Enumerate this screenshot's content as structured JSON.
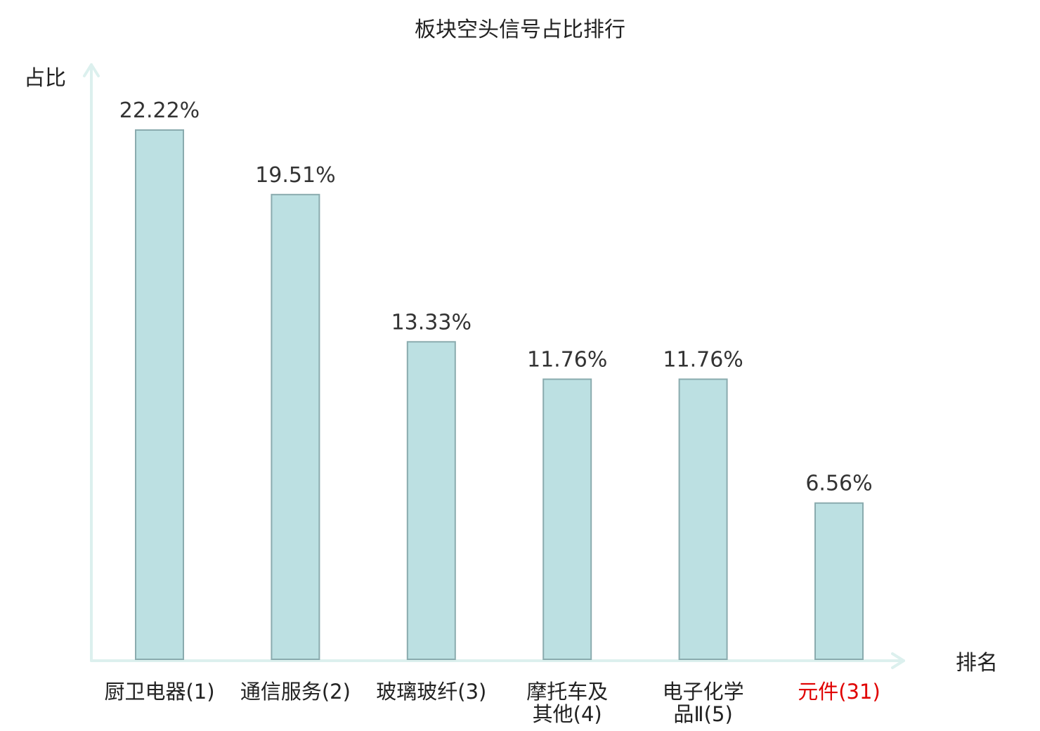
{
  "chart_data": {
    "type": "bar",
    "title": "板块空头信号占比排行",
    "ylabel": "占比",
    "xlabel": "排名",
    "categories": [
      [
        "厨卫电器(1)"
      ],
      [
        "通信服务(2)"
      ],
      [
        "玻璃玻纤(3)"
      ],
      [
        "摩托车及",
        "其他(4)"
      ],
      [
        "电子化学",
        "品Ⅱ(5)"
      ],
      [
        "元件(31)"
      ]
    ],
    "values": [
      22.22,
      19.51,
      13.33,
      11.76,
      11.76,
      6.56
    ],
    "value_labels": [
      "22.22%",
      "19.51%",
      "13.33%",
      "11.76%",
      "11.76%",
      "6.56%"
    ],
    "highlight_index": 5,
    "ylim": [
      0,
      25.0
    ],
    "grid": false,
    "legend": "none"
  },
  "colors": {
    "bar_fill": "#bce0e2",
    "bar_stroke": "#8aabae",
    "axis": "#dcf0ee",
    "text": "#222222",
    "value_text": "#333333",
    "highlight": "#e00000"
  }
}
